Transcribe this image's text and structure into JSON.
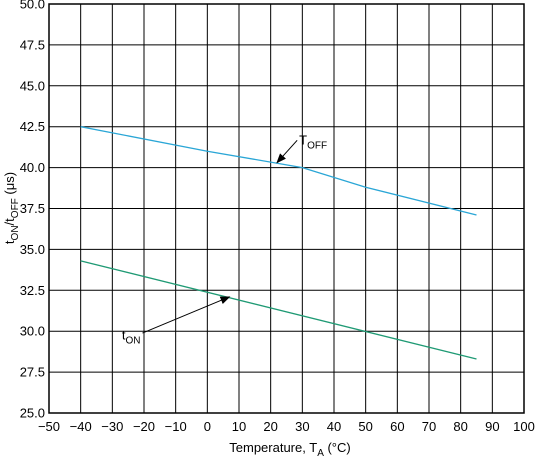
{
  "chart_data": {
    "type": "line",
    "xlabel": {
      "main": "Temperature, T",
      "sub": "A",
      "tail": " (°C)"
    },
    "ylabel": {
      "p1": "t",
      "s1": "ON",
      "p2": "/t",
      "s2": "OFF",
      "tail": " (μs)"
    },
    "xlim": [
      -50,
      100
    ],
    "ylim": [
      25.0,
      50.0
    ],
    "x_ticks": [
      -50,
      -40,
      -30,
      -20,
      -10,
      0,
      10,
      20,
      30,
      40,
      50,
      60,
      70,
      80,
      90,
      100
    ],
    "x_tick_labels": [
      "−50",
      "−40",
      "−30",
      "−20",
      "−10",
      "0",
      "10",
      "20",
      "30",
      "40",
      "50",
      "60",
      "70",
      "80",
      "90",
      "100"
    ],
    "y_ticks": [
      25.0,
      27.5,
      30.0,
      32.5,
      35.0,
      37.5,
      40.0,
      42.5,
      45.0,
      47.5,
      50.0
    ],
    "y_tick_labels": [
      "25.0",
      "27.5",
      "30.0",
      "32.5",
      "35.0",
      "37.5",
      "40.0",
      "42.5",
      "45.0",
      "47.5",
      "50.0"
    ],
    "grid": true,
    "series": [
      {
        "color": "#2aa6d6",
        "x": [
          -40,
          0,
          30,
          50,
          85
        ],
        "y": [
          42.5,
          41.0,
          40.0,
          38.8,
          37.1
        ],
        "label": {
          "main": "T",
          "sub": "OFF"
        }
      },
      {
        "color": "#1f9a74",
        "x": [
          -40,
          85
        ],
        "y": [
          34.3,
          28.3
        ],
        "label": {
          "main": "t",
          "sub": "ON"
        }
      }
    ],
    "annotations": [
      {
        "series": 0,
        "text_at": [
          29,
          41.4
        ],
        "arrow_to": [
          22,
          40.3
        ]
      },
      {
        "series": 1,
        "text_at": [
          -27,
          29.5
        ],
        "arrow_to": [
          7,
          32.1
        ]
      }
    ]
  }
}
